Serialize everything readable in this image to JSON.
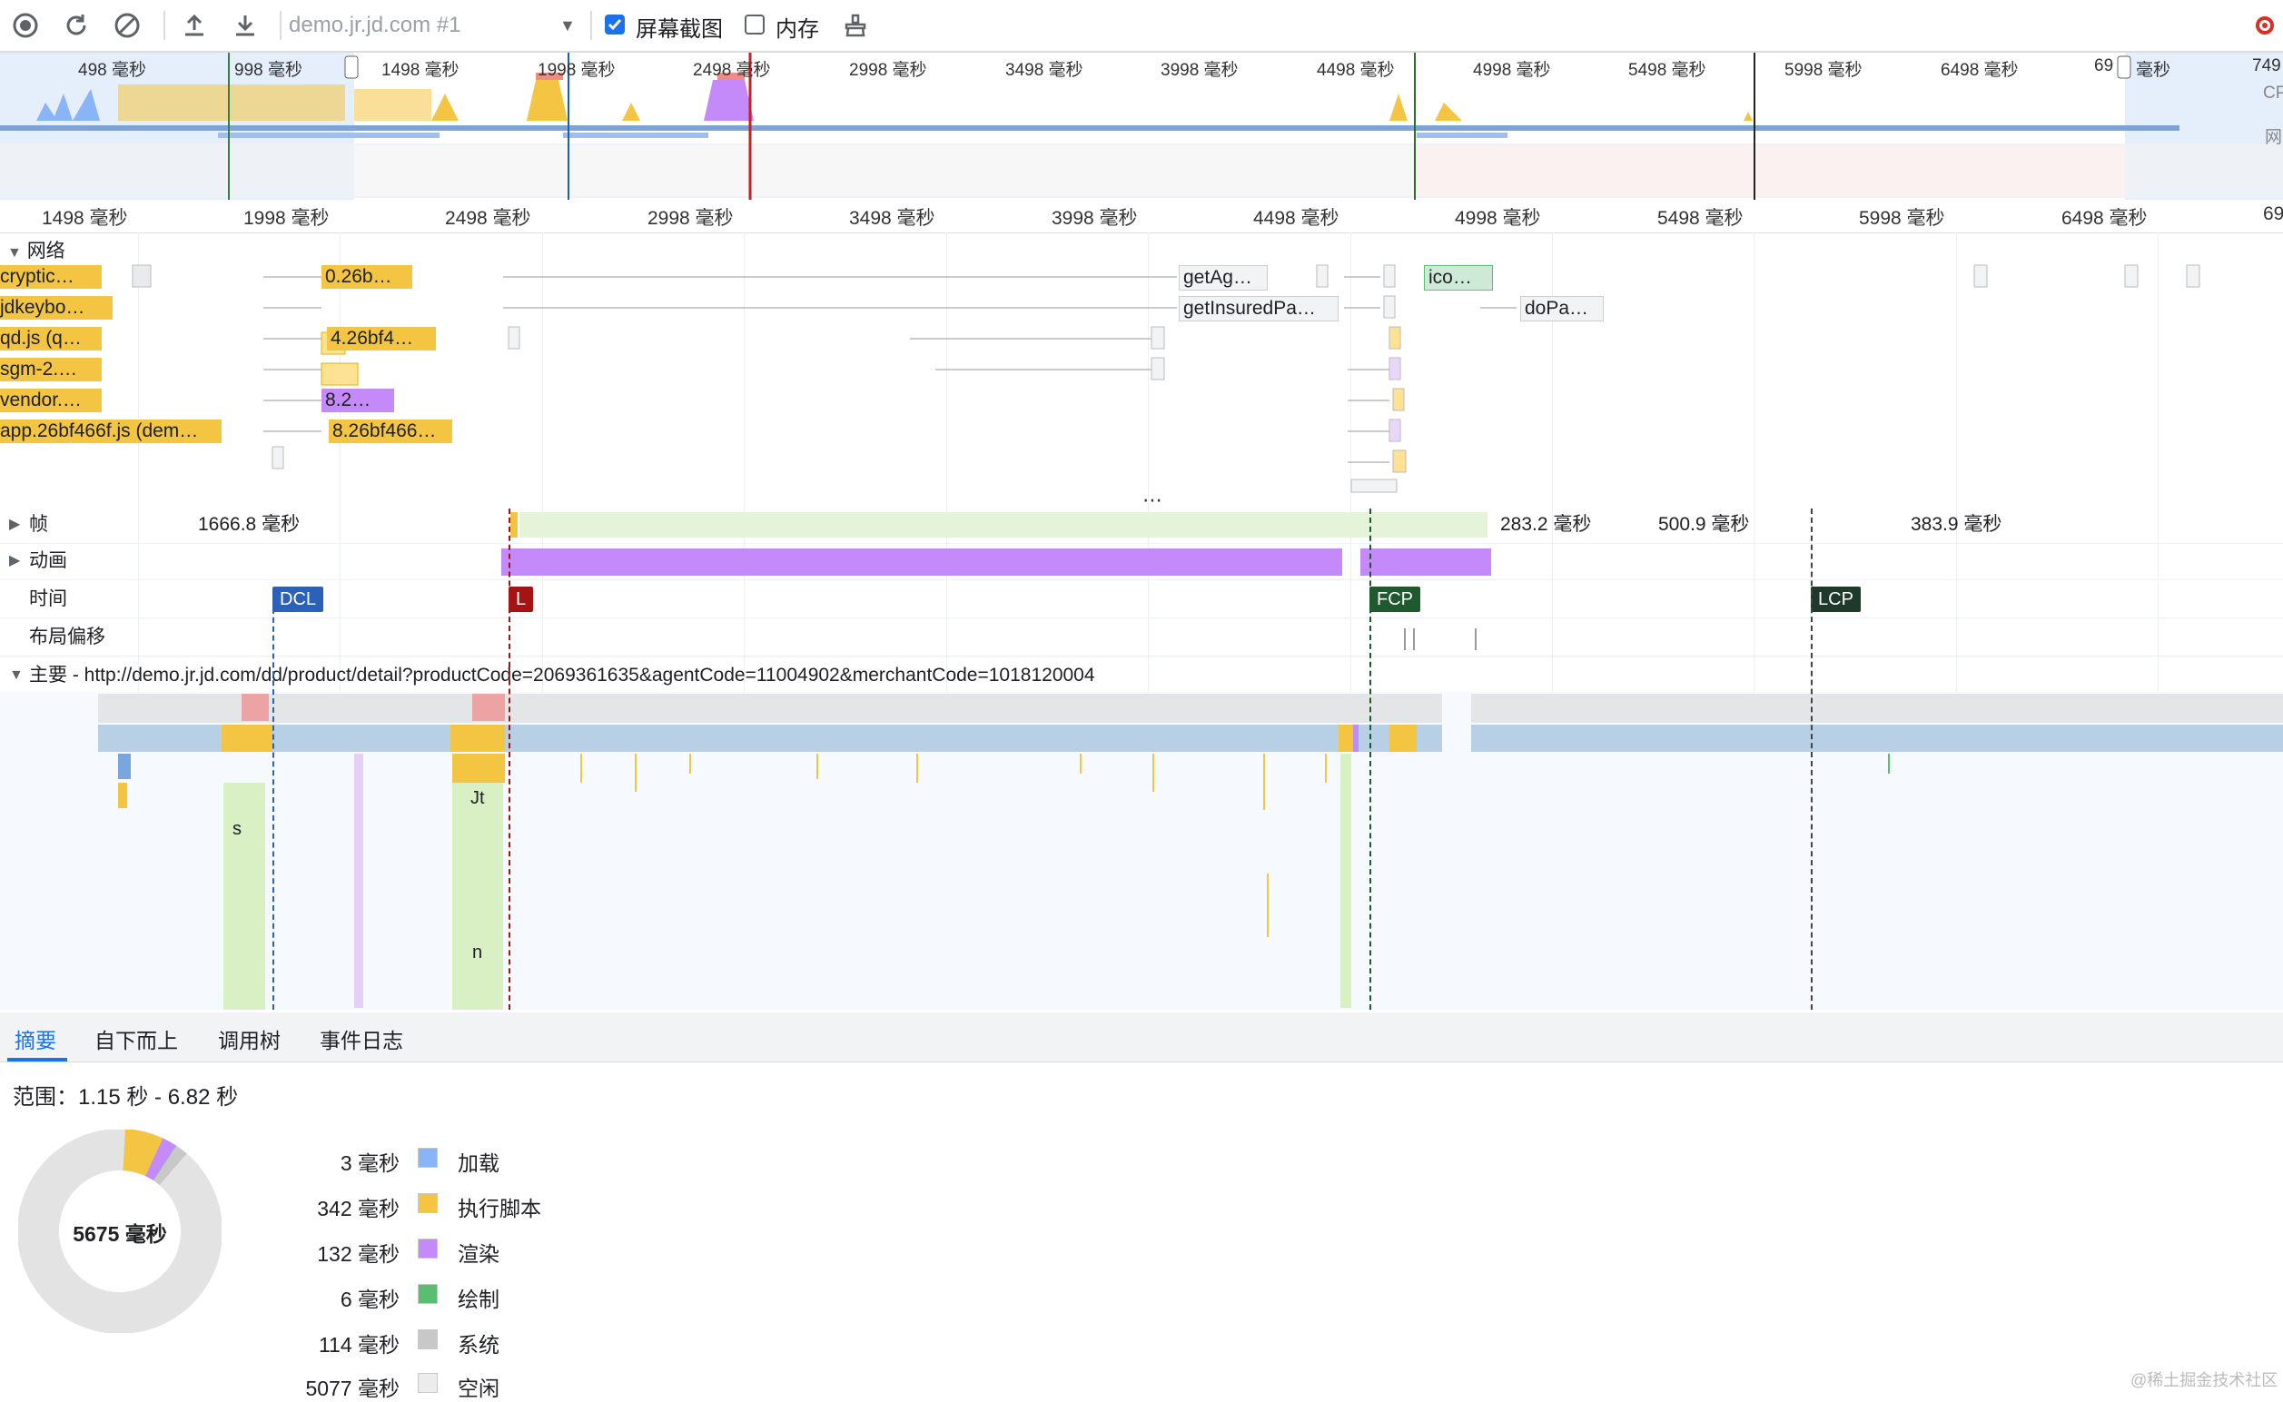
{
  "toolbar": {
    "url_select": "demo.jr.jd.com #1",
    "screenshots_label": "屏幕截图",
    "screenshots_checked": true,
    "memory_label": "内存",
    "memory_checked": false
  },
  "overview_ticks": [
    "498 毫秒",
    "998 毫秒",
    "1498 毫秒",
    "1998 毫秒",
    "2498 毫秒",
    "2998 毫秒",
    "3498 毫秒",
    "3998 毫秒",
    "4498 毫秒",
    "4998 毫秒",
    "5498 毫秒",
    "5998 毫秒",
    "6498 毫秒",
    "69",
    "毫秒",
    "749"
  ],
  "overview_side": {
    "cpu": "CP",
    "net": "网"
  },
  "ruler_ticks": [
    "1498 毫秒",
    "1998 毫秒",
    "2498 毫秒",
    "2998 毫秒",
    "3498 毫秒",
    "3998 毫秒",
    "4498 毫秒",
    "4998 毫秒",
    "5498 毫秒",
    "5998 毫秒",
    "6498 毫秒",
    "69"
  ],
  "network": {
    "title": "网络",
    "rows": [
      "cryptic…",
      "jdkeybo…",
      "qd.js (q…",
      "sgm-2.…",
      "vendor.…",
      "app.26bf466f.js (dem…"
    ],
    "bars": [
      "0.26b…",
      "4.26bf4…",
      "8.2…",
      "8.26bf466…",
      "getAg…",
      "getInsuredPa…",
      "ico…",
      "doPa…"
    ]
  },
  "tracks": {
    "frames_label": "帧",
    "frames_values": [
      "1666.8 毫秒",
      "283.2 毫秒",
      "500.9 毫秒",
      "383.9 毫秒"
    ],
    "animation_label": "动画",
    "timings_label": "时间",
    "markers": [
      "DCL",
      "L",
      "FCP",
      "LCP"
    ],
    "layout_shift_label": "布局偏移",
    "main_label": "主要 - http://demo.jr.jd.com/dd/product/detail?productCode=2069361635&agentCode=11004902&merchantCode=1018120004",
    "flame_labels": [
      "Jt",
      "s",
      "n"
    ]
  },
  "bottom_tabs": [
    "摘要",
    "自下而上",
    "调用树",
    "事件日志"
  ],
  "summary": {
    "range_label": "范围：1.15 秒 - 6.82 秒",
    "total": "5675 毫秒",
    "items": [
      {
        "value": "3 毫秒",
        "label": "加载",
        "color": "#8ab4f8",
        "ms": 3
      },
      {
        "value": "342 毫秒",
        "label": "执行脚本",
        "color": "#f4c542",
        "ms": 342
      },
      {
        "value": "132 毫秒",
        "label": "渲染",
        "color": "#c58af9",
        "ms": 132
      },
      {
        "value": "6 毫秒",
        "label": "绘制",
        "color": "#5bbd72",
        "ms": 6
      },
      {
        "value": "114 毫秒",
        "label": "系统",
        "color": "#c8c8c8",
        "ms": 114
      },
      {
        "value": "5077 毫秒",
        "label": "空闲",
        "color": "#ececec",
        "ms": 5077
      }
    ]
  },
  "watermark": "@稀土掘金技术社区",
  "colors": {
    "accent": "#1a73e8",
    "script": "#f4c542",
    "render": "#c58af9",
    "paint": "#5bbd72"
  }
}
